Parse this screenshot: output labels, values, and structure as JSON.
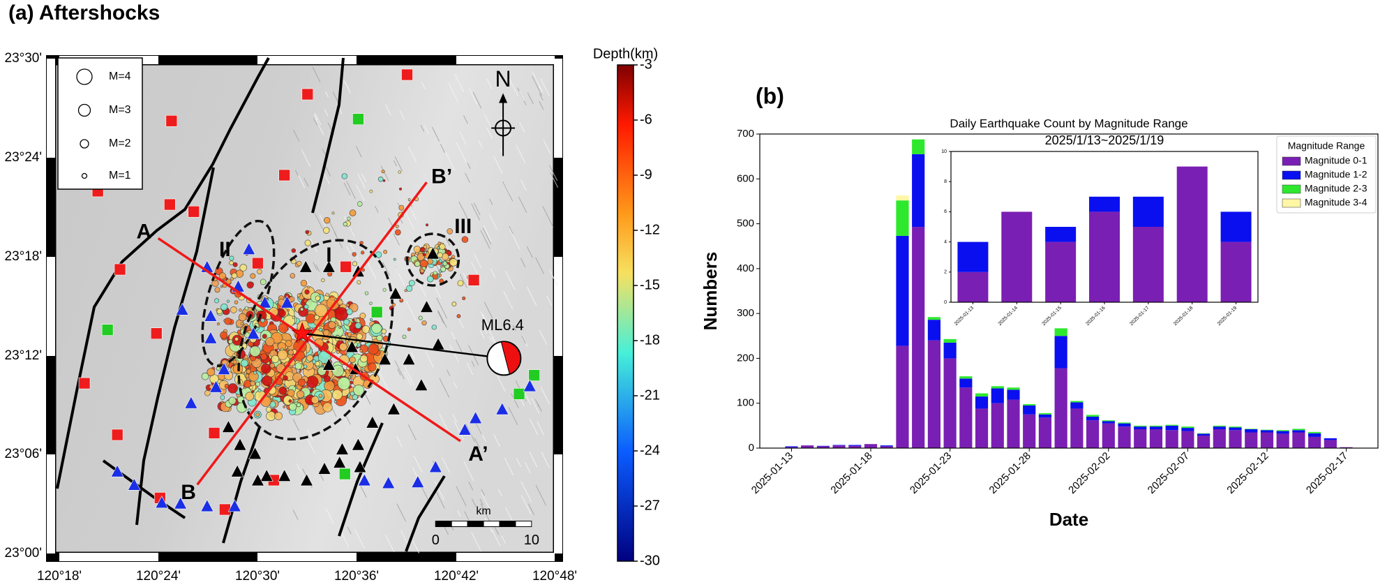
{
  "map": {
    "title": "(a) Aftershocks",
    "lat_labels": [
      "23°30'",
      "23°24'",
      "23°18'",
      "23°12'",
      "23°06'",
      "23°00'"
    ],
    "lon_labels": [
      "120°18'",
      "120°24'",
      "120°30'",
      "120°36'",
      "120°42'",
      "120°48'"
    ],
    "legend": [
      "M=4",
      "M=3",
      "M=2",
      "M=1"
    ],
    "north": "N",
    "event": "ML6.4",
    "profiles": [
      "A",
      "A’",
      "B",
      "B’"
    ],
    "zones": [
      "I",
      "II",
      "III"
    ],
    "scale_unit": "km",
    "scale_ticks": [
      "0",
      "10"
    ],
    "colorbar": {
      "title": "Depth(km)",
      "lim": [
        -30,
        -3
      ],
      "ticks": [
        -3,
        -6,
        -9,
        -12,
        -15,
        -18,
        -21,
        -24,
        -27,
        -30
      ]
    }
  },
  "chart_data": [
    {
      "type": "bar",
      "stacked": true,
      "panel": "(b)",
      "title": "Daily Earthquake Count by Magnitude Range",
      "xlabel": "Date",
      "ylabel": "Numbers",
      "x": [
        "2025-01-13",
        "2025-01-14",
        "2025-01-15",
        "2025-01-16",
        "2025-01-17",
        "2025-01-18",
        "2025-01-19",
        "2025-01-20",
        "2025-01-21",
        "2025-01-22",
        "2025-01-23",
        "2025-01-24",
        "2025-01-25",
        "2025-01-26",
        "2025-01-27",
        "2025-01-28",
        "2025-01-29",
        "2025-01-30",
        "2025-01-31",
        "2025-02-01",
        "2025-02-02",
        "2025-02-03",
        "2025-02-04",
        "2025-02-05",
        "2025-02-06",
        "2025-02-07",
        "2025-02-08",
        "2025-02-09",
        "2025-02-10",
        "2025-02-11",
        "2025-02-12",
        "2025-02-13",
        "2025-02-14",
        "2025-02-15",
        "2025-02-16",
        "2025-02-17"
      ],
      "series": [
        {
          "name": "Magnitude 0-1",
          "color": "#7a1fb3",
          "values": [
            2,
            6,
            4,
            6,
            5,
            9,
            4,
            228,
            493,
            240,
            200,
            135,
            88,
            100,
            108,
            75,
            68,
            178,
            88,
            62,
            55,
            48,
            42,
            42,
            40,
            38,
            28,
            42,
            40,
            35,
            35,
            32,
            35,
            25,
            18,
            2
          ]
        },
        {
          "name": "Magnitude 1-2",
          "color": "#0a0ff0",
          "values": [
            2,
            0,
            1,
            1,
            2,
            0,
            2,
            245,
            162,
            46,
            35,
            20,
            27,
            33,
            22,
            20,
            7,
            72,
            14,
            8,
            5,
            7,
            6,
            6,
            10,
            7,
            4,
            6,
            6,
            7,
            5,
            6,
            5,
            8,
            4,
            0
          ]
        },
        {
          "name": "Magnitude 2-3",
          "color": "#2ee82e",
          "values": [
            0,
            0,
            0,
            0,
            0,
            0,
            0,
            79,
            33,
            6,
            8,
            5,
            7,
            5,
            5,
            3,
            3,
            17,
            3,
            4,
            2,
            2,
            2,
            2,
            2,
            3,
            1,
            2,
            2,
            1,
            1,
            2,
            3,
            3,
            0,
            0
          ]
        },
        {
          "name": "Magnitude 3-4",
          "color": "#fff7a6",
          "values": [
            0,
            0,
            0,
            0,
            0,
            0,
            0,
            11,
            0,
            0,
            0,
            0,
            0,
            0,
            0,
            0,
            0,
            0,
            0,
            0,
            0,
            0,
            0,
            0,
            0,
            0,
            0,
            0,
            0,
            0,
            0,
            0,
            0,
            0,
            0,
            0
          ]
        }
      ],
      "xlim": [
        "2025-01-11",
        "2025-02-19"
      ],
      "xticks": [
        "2025-01-13",
        "2025-01-18",
        "2025-01-23",
        "2025-01-28",
        "2025-02-02",
        "2025-02-07",
        "2025-02-12",
        "2025-02-17"
      ],
      "ylim": [
        0,
        700
      ],
      "yticks": [
        0,
        100,
        200,
        300,
        400,
        500,
        600,
        700
      ],
      "legend_title": "Magnitude Range",
      "legend": "upper right",
      "grid": false
    },
    {
      "type": "bar",
      "stacked": true,
      "title": "2025/1/13~2025/1/19",
      "categories": [
        "2025-01-13",
        "2025-01-14",
        "2025-01-15",
        "2025-01-16",
        "2025-01-17",
        "2025-01-18",
        "2025-01-19"
      ],
      "series": [
        {
          "color": "#7a1fb3",
          "values": [
            2,
            6,
            4,
            6,
            5,
            9,
            4
          ]
        },
        {
          "color": "#0a0ff0",
          "values": [
            2,
            0,
            1,
            1,
            2,
            0,
            2
          ]
        }
      ],
      "ylim": [
        0,
        10
      ],
      "yticks": [
        0,
        2,
        4,
        6,
        8,
        10
      ],
      "grid": false
    }
  ]
}
